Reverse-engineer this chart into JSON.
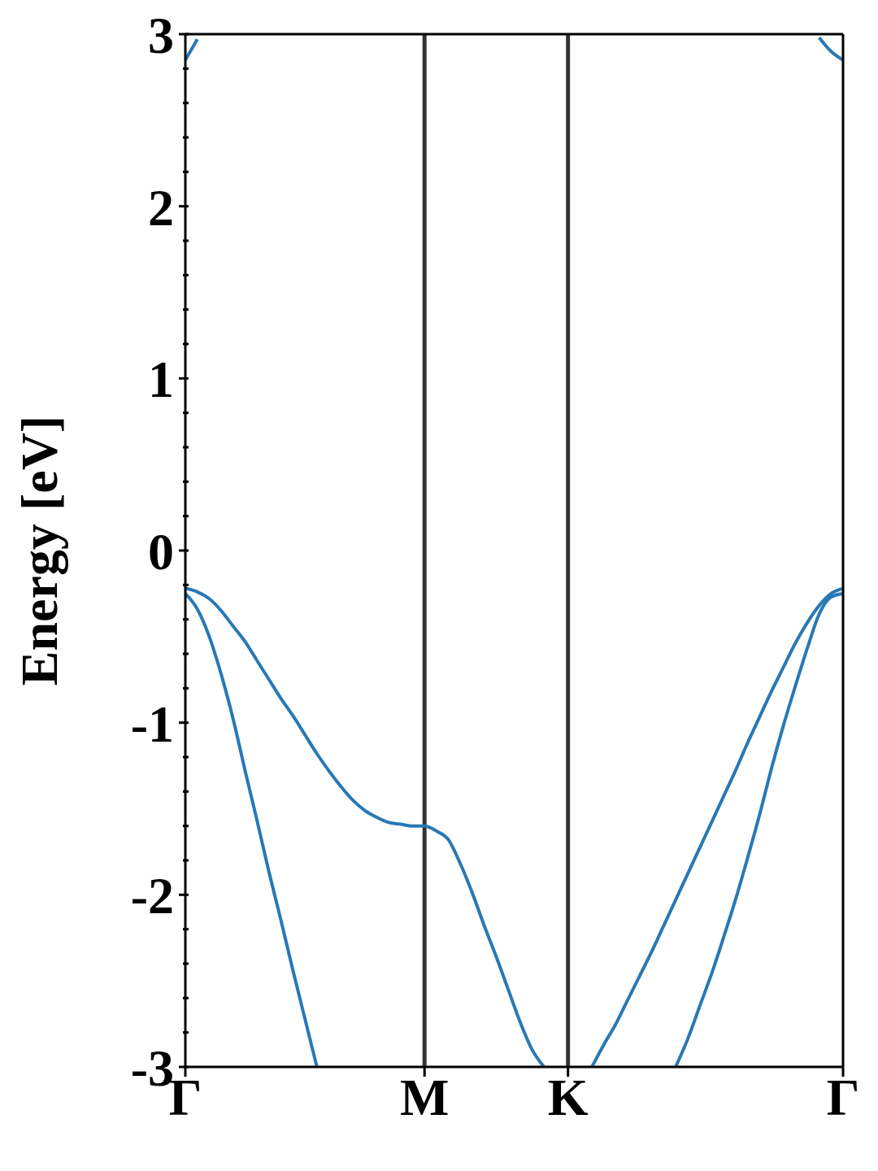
{
  "chart_data": {
    "type": "line",
    "ylabel": "Energy [eV]",
    "categories": [
      "Γ",
      null,
      null,
      null,
      null,
      null,
      null,
      null,
      null,
      null,
      null,
      null,
      null,
      null,
      null,
      null,
      null,
      null,
      null,
      null,
      "M",
      null,
      null,
      null,
      null,
      null,
      null,
      null,
      null,
      null,
      null,
      null,
      "K",
      null,
      null,
      null,
      null,
      null,
      null,
      null,
      null,
      null,
      null,
      null,
      null,
      null,
      null,
      null,
      null,
      null,
      null,
      null,
      null,
      null,
      null,
      "Γ"
    ],
    "ylim": [
      -3,
      3
    ],
    "yticks": [
      -3,
      {
        "value": -2.8,
        "label": null
      },
      {
        "value": -2.6,
        "label": null
      },
      {
        "value": -2.4,
        "label": null
      },
      {
        "value": -2.2,
        "label": null
      },
      -2,
      {
        "value": -1.8,
        "label": null
      },
      {
        "value": -1.6,
        "label": null
      },
      {
        "value": -1.4,
        "label": null
      },
      {
        "value": -1.2,
        "label": null
      },
      -1,
      {
        "value": -0.8,
        "label": null
      },
      {
        "value": -0.6,
        "label": null
      },
      {
        "value": -0.4,
        "label": null
      },
      {
        "value": -0.2,
        "label": null
      },
      0,
      {
        "value": 0.2,
        "label": null
      },
      {
        "value": 0.4,
        "label": null
      },
      {
        "value": 0.6,
        "label": null
      },
      {
        "value": 0.8,
        "label": null
      },
      1,
      {
        "value": 1.2,
        "label": null
      },
      {
        "value": 1.4,
        "label": null
      },
      {
        "value": 1.6,
        "label": null
      },
      {
        "value": 1.8,
        "label": null
      },
      2,
      {
        "value": 2.2,
        "label": null
      },
      {
        "value": 2.4,
        "label": null
      },
      {
        "value": 2.6,
        "label": null
      },
      {
        "value": 2.8,
        "label": null
      },
      3
    ],
    "grid": false,
    "legend": false,
    "marker": "none",
    "line_style": "solid",
    "ref_lines": [
      {
        "axis": "x",
        "value": "M",
        "color": "#333333"
      },
      {
        "axis": "x",
        "value": "K",
        "color": "#333333"
      }
    ],
    "series": [
      {
        "color": "#2878b5",
        "values": [
          -0.22,
          -0.24,
          -0.28,
          -0.35,
          -0.44,
          -0.53,
          -0.64,
          -0.75,
          -0.86,
          -0.96,
          -1.07,
          -1.18,
          -1.28,
          -1.37,
          -1.45,
          -1.51,
          -1.55,
          -1.58,
          -1.59,
          -1.6,
          -1.6,
          -1.63,
          -1.68,
          -1.82,
          -1.99,
          -2.18,
          -2.36,
          -2.55,
          -2.74,
          -2.9,
          -3,
          null,
          null,
          null,
          -3,
          -2.87,
          -2.75,
          -2.61,
          -2.47,
          -2.33,
          -2.18,
          -2.03,
          -1.88,
          -1.73,
          -1.58,
          -1.43,
          -1.28,
          -1.12,
          -0.97,
          -0.82,
          -0.68,
          -0.54,
          -0.42,
          -0.32,
          -0.25,
          -0.22
        ]
      },
      {
        "color": "#2878b5",
        "values": [
          -0.25,
          -0.34,
          -0.5,
          -0.72,
          -0.98,
          -1.28,
          -1.57,
          -1.87,
          -2.15,
          -2.44,
          -2.72,
          -3,
          null,
          null,
          null,
          null,
          null,
          null,
          null,
          null,
          null,
          null,
          null,
          null,
          null,
          null,
          null,
          null,
          null,
          null,
          null,
          null,
          null,
          null,
          null,
          null,
          null,
          null,
          null,
          null,
          null,
          -3,
          -2.84,
          -2.65,
          -2.46,
          -2.25,
          -2.03,
          -1.79,
          -1.54,
          -1.27,
          -1.02,
          -0.79,
          -0.57,
          -0.37,
          -0.27,
          -0.25
        ]
      },
      {
        "color": "#2878b5",
        "values": [
          2.85,
          2.97,
          null,
          null,
          null,
          null,
          null,
          null,
          null,
          null,
          null,
          null,
          null,
          null,
          null,
          null,
          null,
          null,
          null,
          null,
          null,
          null,
          null,
          null,
          null,
          null,
          null,
          null,
          null,
          null,
          null,
          null,
          null,
          null,
          null,
          null,
          null,
          null,
          null,
          null,
          null,
          null,
          null,
          null,
          null,
          null,
          null,
          null,
          null,
          null,
          null,
          null,
          null,
          2.98,
          2.9,
          2.85
        ]
      }
    ]
  }
}
